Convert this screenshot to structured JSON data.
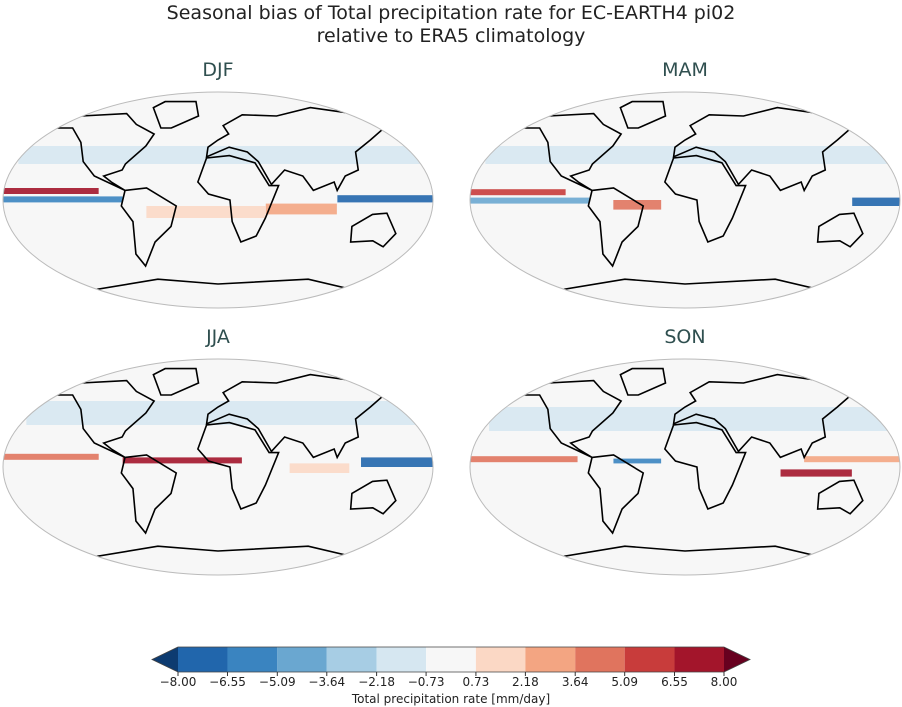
{
  "title": [
    "Seasonal bias of Total precipitation rate for EC-EARTH4 pi02",
    "relative to ERA5 climatology"
  ],
  "panels": [
    {
      "title": "DJF"
    },
    {
      "title": "MAM"
    },
    {
      "title": "JJA"
    },
    {
      "title": "SON"
    }
  ],
  "colorbar": {
    "label": "Total precipitation rate [mm/day]",
    "ticks": [
      {
        "value": -8,
        "label": "−8.00"
      },
      {
        "value": -6.55,
        "label": "−6.55"
      },
      {
        "value": -5.09,
        "label": "−5.09"
      },
      {
        "value": -3.64,
        "label": "−3.64"
      },
      {
        "value": -2.18,
        "label": "−2.18"
      },
      {
        "value": -0.73,
        "label": "−0.73"
      },
      {
        "value": 0.73,
        "label": "0.73"
      },
      {
        "value": 2.18,
        "label": "2.18"
      },
      {
        "value": 3.64,
        "label": "3.64"
      },
      {
        "value": 5.09,
        "label": "5.09"
      },
      {
        "value": 6.55,
        "label": "6.55"
      },
      {
        "value": 8,
        "label": "8.00"
      }
    ],
    "colors": [
      "#2166ac",
      "#3a84c0",
      "#6aa7d0",
      "#a7cde4",
      "#d6e7f1",
      "#f7f7f7",
      "#fbd8c5",
      "#f3a582",
      "#e0745e",
      "#c83c3b",
      "#a3152b"
    ],
    "extend_colors": [
      "#0d3b70",
      "#67001f"
    ]
  }
}
